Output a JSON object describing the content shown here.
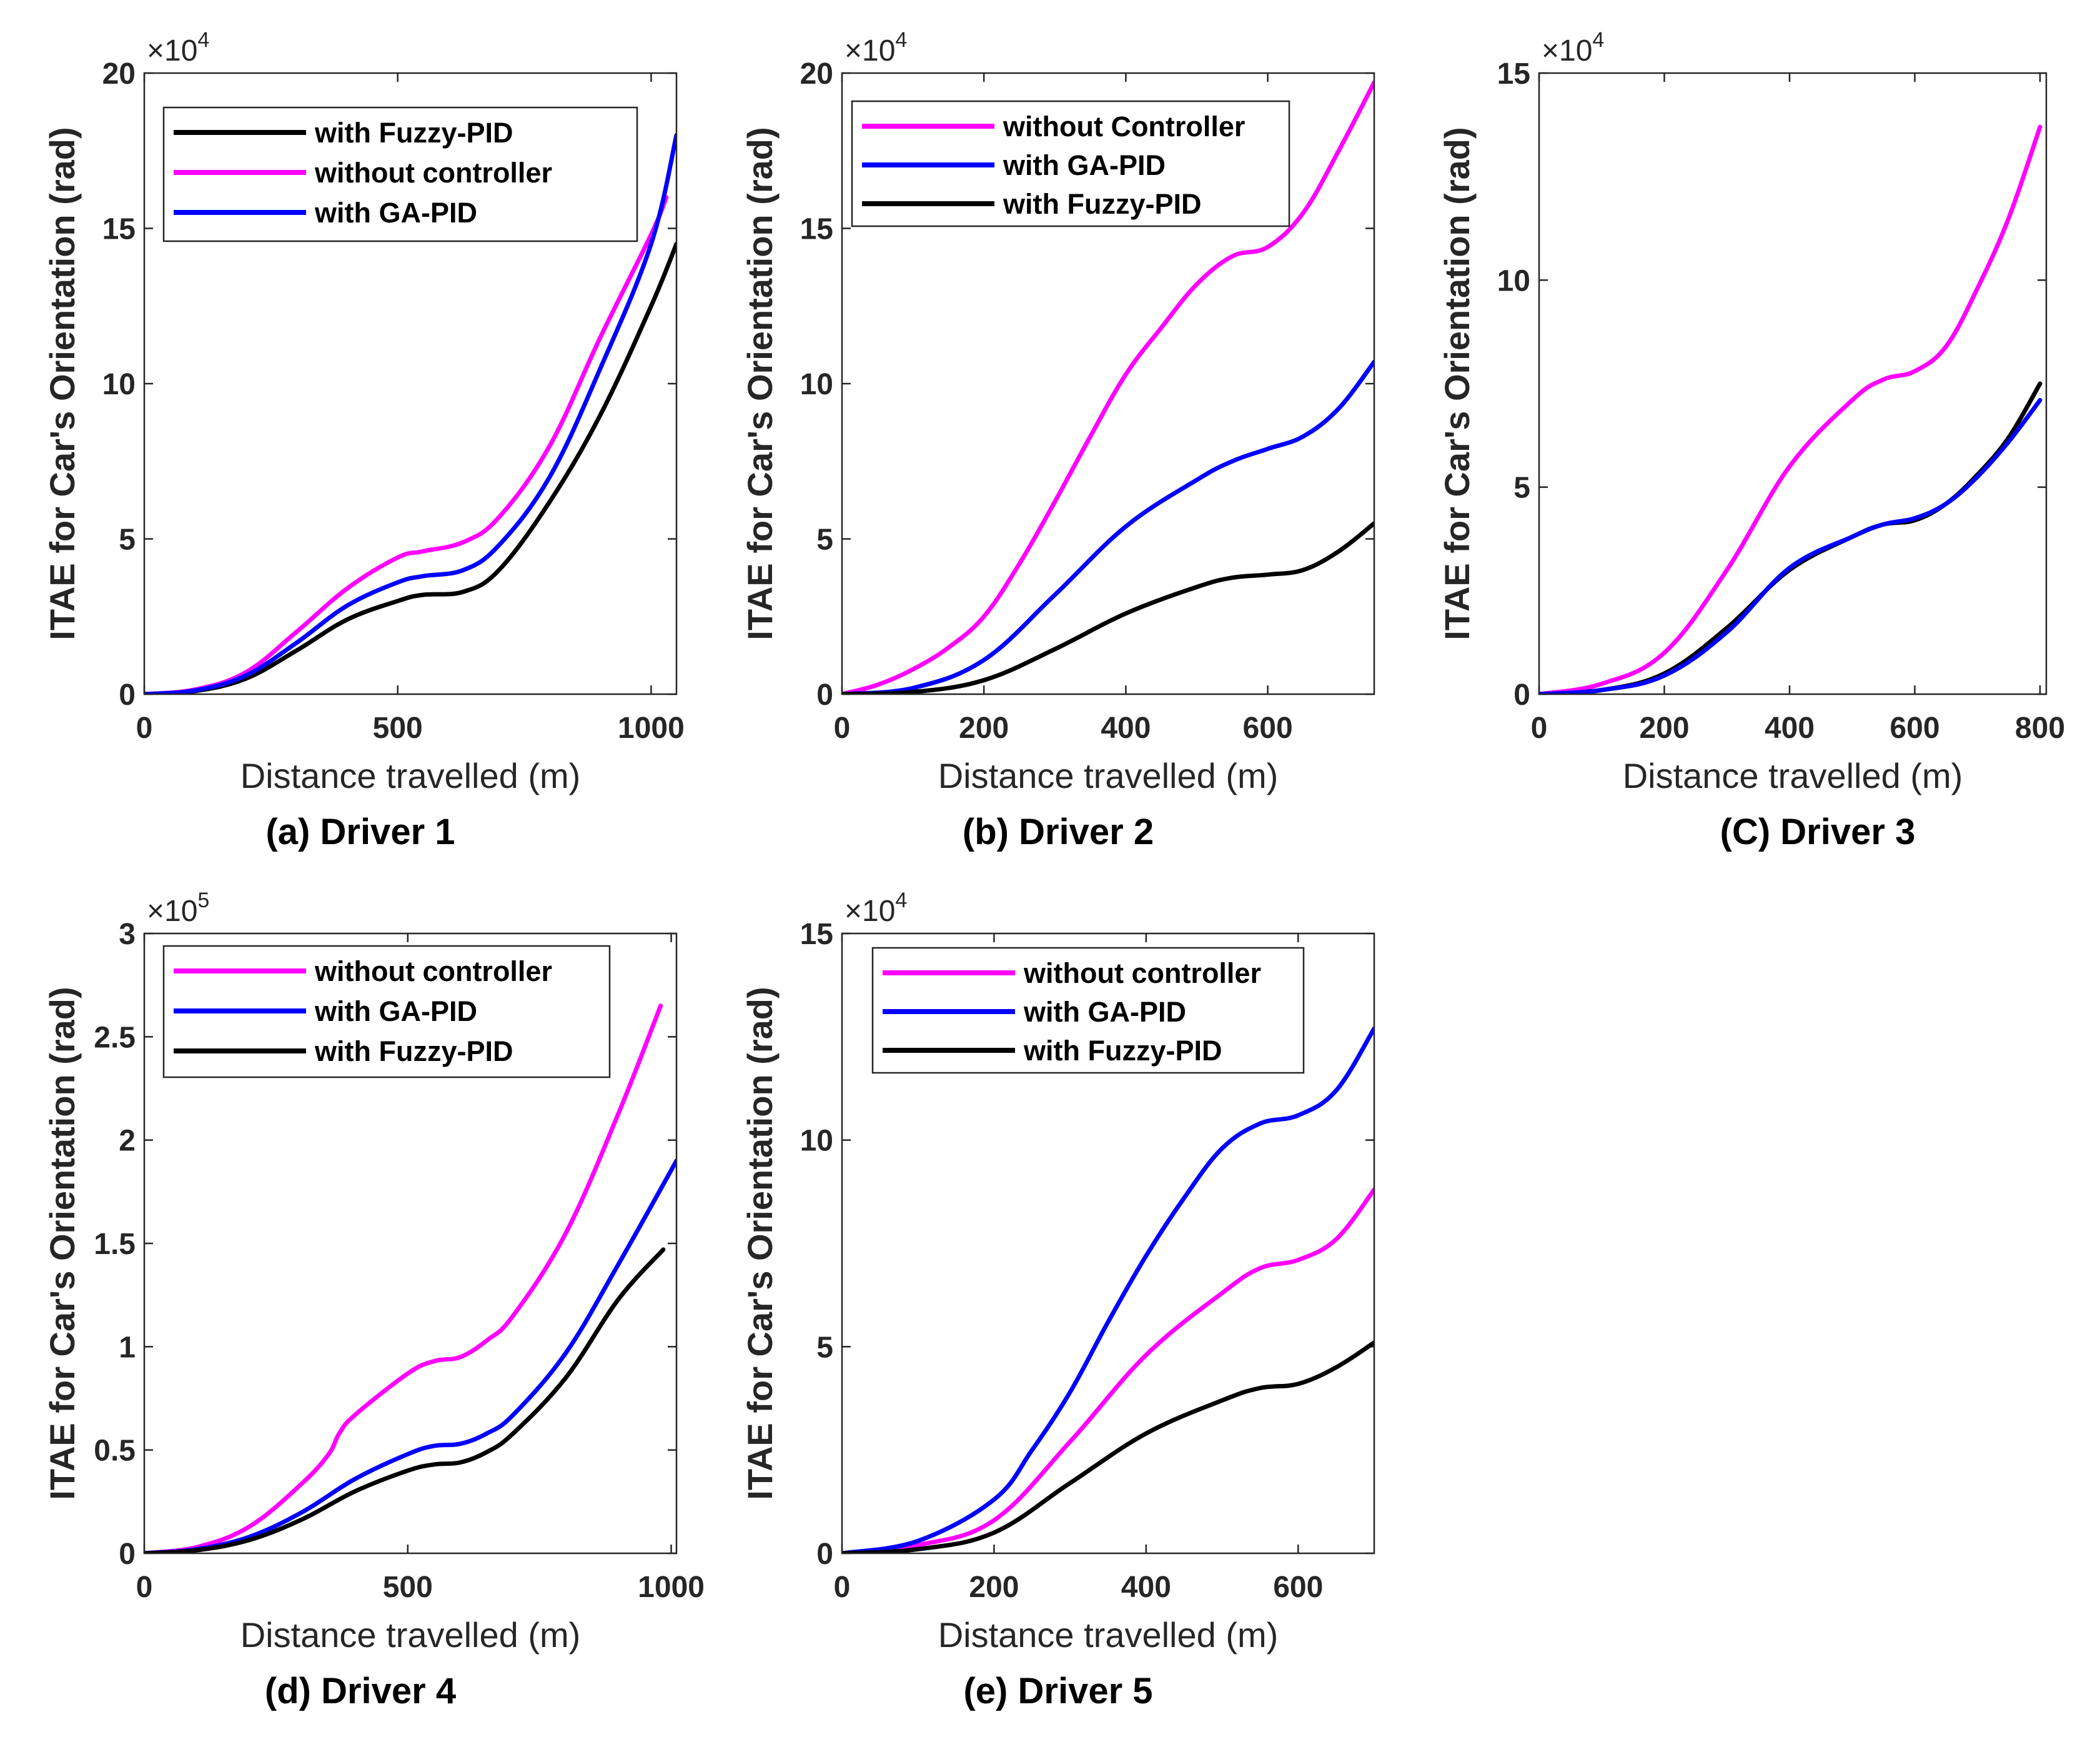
{
  "chart_data": [
    {
      "type": "line",
      "caption": "(a) Driver 1",
      "xlabel": "Distance travelled (m)",
      "ylabel": "ITAE for Car's Orientation (rad)",
      "xlim": [
        0,
        1050
      ],
      "ylim": [
        0,
        200000
      ],
      "xticks": [
        0,
        500,
        1000
      ],
      "xtick_labels": [
        "0",
        "500",
        "1000"
      ],
      "yticks": [
        0,
        50000,
        100000,
        150000,
        200000
      ],
      "ytick_labels": [
        "0",
        "5",
        "10",
        "15",
        "20"
      ],
      "exponent": {
        "base": "×10",
        "power": "4"
      },
      "legend": {
        "location": "top-left",
        "order": [
          "with Fuzzy-PID",
          "without controller",
          "with GA-PID"
        ]
      },
      "series": [
        {
          "name": "with Fuzzy-PID",
          "color": "#000000",
          "x": [
            0,
            100,
            200,
            300,
            400,
            500,
            550,
            630,
            700,
            800,
            900,
            1000,
            1050
          ],
          "y": [
            0,
            1000,
            5000,
            14000,
            24000,
            30000,
            32000,
            33000,
            40000,
            62000,
            90000,
            125000,
            145000
          ]
        },
        {
          "name": "without controller",
          "color": "#ff00ff",
          "x": [
            0,
            100,
            200,
            300,
            400,
            500,
            550,
            630,
            700,
            800,
            900,
            1000,
            1030
          ],
          "y": [
            0,
            1500,
            7000,
            20000,
            34000,
            44000,
            46000,
            49000,
            57000,
            80000,
            115000,
            148000,
            160000
          ]
        },
        {
          "name": "with GA-PID",
          "color": "#0000ff",
          "x": [
            0,
            100,
            200,
            300,
            400,
            500,
            550,
            630,
            700,
            800,
            900,
            1000,
            1050
          ],
          "y": [
            0,
            1200,
            6000,
            16500,
            28500,
            36000,
            38000,
            40000,
            48000,
            70000,
            105000,
            145000,
            180000
          ]
        }
      ]
    },
    {
      "type": "line",
      "caption": "(b) Driver 2",
      "xlabel": "Distance travelled (m)",
      "ylabel": "ITAE for Car's Orientation (rad)",
      "xlim": [
        0,
        750
      ],
      "ylim": [
        0,
        200000
      ],
      "xticks": [
        0,
        200,
        400,
        600
      ],
      "xtick_labels": [
        "0",
        "200",
        "400",
        "600"
      ],
      "yticks": [
        0,
        50000,
        100000,
        150000,
        200000
      ],
      "ytick_labels": [
        "0",
        "5",
        "10",
        "15",
        "20"
      ],
      "exponent": {
        "base": "×10",
        "power": "4"
      },
      "legend": {
        "location": "top-left",
        "order": [
          "without Controller",
          "with GA-PID",
          "with Fuzzy-PID"
        ]
      },
      "series": [
        {
          "name": "without Controller",
          "color": "#ff00ff",
          "x": [
            0,
            50,
            100,
            150,
            200,
            250,
            300,
            350,
            400,
            450,
            500,
            550,
            600,
            650,
            700,
            750
          ],
          "y": [
            0,
            3000,
            8000,
            15000,
            25000,
            42000,
            62000,
            83000,
            103000,
            118000,
            132000,
            141000,
            144000,
            155000,
            175000,
            197000
          ]
        },
        {
          "name": "with GA-PID",
          "color": "#0000ff",
          "x": [
            0,
            100,
            200,
            300,
            400,
            500,
            550,
            600,
            650,
            700,
            750
          ],
          "y": [
            0,
            2000,
            11000,
            32000,
            54000,
            69000,
            75000,
            79000,
            83000,
            92000,
            107000
          ]
        },
        {
          "name": "with Fuzzy-PID",
          "color": "#000000",
          "x": [
            0,
            100,
            200,
            300,
            400,
            500,
            550,
            600,
            650,
            700,
            750
          ],
          "y": [
            0,
            700,
            4500,
            14500,
            26000,
            34500,
            37500,
            38500,
            40000,
            46000,
            55000
          ]
        }
      ]
    },
    {
      "type": "line",
      "caption": "(C) Driver 3",
      "xlabel": "Distance travelled (m)",
      "ylabel": "ITAE for Car's Orientation (rad)",
      "xlim": [
        0,
        810
      ],
      "ylim": [
        0,
        150000
      ],
      "xticks": [
        0,
        200,
        400,
        600,
        800
      ],
      "xtick_labels": [
        "0",
        "200",
        "400",
        "600",
        "800"
      ],
      "yticks": [
        0,
        50000,
        100000,
        150000
      ],
      "ytick_labels": [
        "0",
        "5",
        "10",
        "15"
      ],
      "exponent": {
        "base": "×10",
        "power": "4"
      },
      "legend": null,
      "series": [
        {
          "name": "",
          "color": "#ff00ff",
          "x": [
            0,
            100,
            200,
            300,
            400,
            500,
            550,
            600,
            650,
            700,
            750,
            800
          ],
          "y": [
            0,
            2500,
            10000,
            30000,
            55000,
            71000,
            76000,
            78000,
            84000,
            98000,
            115000,
            137000
          ]
        },
        {
          "name": "",
          "color": "#000000",
          "x": [
            0,
            100,
            200,
            300,
            400,
            500,
            550,
            600,
            650,
            700,
            750,
            800
          ],
          "y": [
            0,
            1000,
            5000,
            16000,
            30000,
            38000,
            41000,
            42000,
            46000,
            53000,
            62000,
            75000
          ]
        },
        {
          "name": "",
          "color": "#0000ff",
          "x": [
            0,
            100,
            200,
            300,
            400,
            500,
            550,
            600,
            650,
            700,
            750,
            800
          ],
          "y": [
            0,
            1000,
            4500,
            15000,
            30500,
            38000,
            41000,
            42500,
            46000,
            52500,
            61000,
            71000
          ]
        }
      ]
    },
    {
      "type": "line",
      "caption": "(d) Driver 4",
      "xlabel": "Distance travelled (m)",
      "ylabel": "ITAE for Car's Orientation (rad)",
      "xlim": [
        0,
        1010
      ],
      "ylim": [
        0,
        300000
      ],
      "xticks": [
        0,
        500,
        1000
      ],
      "xtick_labels": [
        "0",
        "500",
        "1000"
      ],
      "yticks": [
        0,
        50000,
        100000,
        150000,
        200000,
        250000,
        300000
      ],
      "ytick_labels": [
        "0",
        "0.5",
        "1",
        "1.5",
        "2",
        "2.5",
        "3"
      ],
      "exponent": {
        "base": "×10",
        "power": "5"
      },
      "legend": {
        "location": "top-left",
        "order": [
          "without controller",
          "with GA-PID",
          "with Fuzzy-PID"
        ]
      },
      "series": [
        {
          "name": "without controller",
          "color": "#ff00ff",
          "x": [
            0,
            100,
            200,
            300,
            350,
            370,
            400,
            500,
            550,
            600,
            650,
            700,
            800,
            900,
            980
          ],
          "y": [
            0,
            3000,
            13000,
            34000,
            48000,
            58000,
            67000,
            87000,
            93000,
            95000,
            103000,
            115000,
            155000,
            213000,
            265000
          ]
        },
        {
          "name": "with GA-PID",
          "color": "#0000ff",
          "x": [
            0,
            100,
            200,
            300,
            400,
            500,
            550,
            600,
            650,
            700,
            800,
            900,
            1010
          ],
          "y": [
            0,
            2000,
            8000,
            20000,
            36000,
            48000,
            52000,
            53000,
            58000,
            67000,
            97000,
            140000,
            190000
          ]
        },
        {
          "name": "with Fuzzy-PID",
          "color": "#000000",
          "x": [
            0,
            100,
            200,
            300,
            400,
            500,
            550,
            600,
            650,
            700,
            800,
            900,
            985
          ],
          "y": [
            0,
            1500,
            6500,
            16500,
            30000,
            40000,
            43000,
            44000,
            49000,
            58000,
            85000,
            123000,
            147000
          ]
        }
      ]
    },
    {
      "type": "line",
      "caption": "(e) Driver 5",
      "xlabel": "Distance travelled (m)",
      "ylabel": "ITAE for Car's Orientation (rad)",
      "xlim": [
        0,
        700
      ],
      "ylim": [
        0,
        150000
      ],
      "xticks": [
        0,
        200,
        400,
        600
      ],
      "xtick_labels": [
        "0",
        "200",
        "400",
        "600"
      ],
      "yticks": [
        0,
        50000,
        100000,
        150000
      ],
      "ytick_labels": [
        "0",
        "5",
        "10",
        "15"
      ],
      "exponent": {
        "base": "×10",
        "power": "4"
      },
      "legend": {
        "location": "top-left",
        "order": [
          "without controller",
          "with GA-PID",
          "with Fuzzy-PID"
        ]
      },
      "series": [
        {
          "name": "without controller",
          "color": "#ff00ff",
          "x": [
            0,
            100,
            200,
            300,
            400,
            500,
            550,
            600,
            650,
            700
          ],
          "y": [
            0,
            2000,
            8000,
            27000,
            48000,
            63000,
            69000,
            71000,
            76000,
            88000
          ]
        },
        {
          "name": "with GA-PID",
          "color": "#0000ff",
          "x": [
            0,
            100,
            200,
            250,
            300,
            350,
            400,
            450,
            500,
            550,
            600,
            650,
            700
          ],
          "y": [
            0,
            3000,
            13000,
            25000,
            39000,
            56000,
            72000,
            86000,
            98000,
            104000,
            106000,
            112000,
            127000
          ]
        },
        {
          "name": "with Fuzzy-PID",
          "color": "#000000",
          "x": [
            0,
            100,
            200,
            300,
            400,
            500,
            550,
            600,
            650,
            700
          ],
          "y": [
            0,
            1000,
            5000,
            17000,
            29000,
            37000,
            40000,
            41000,
            45000,
            51000
          ]
        }
      ]
    }
  ]
}
